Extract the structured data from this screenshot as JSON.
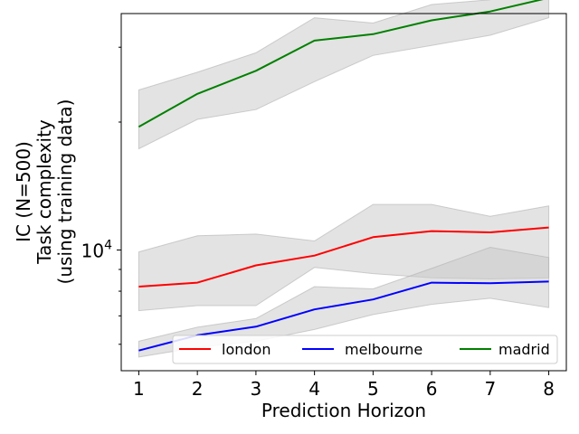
{
  "chart_data": {
    "type": "line",
    "xlabel": "Prediction Horizon",
    "ylabel_lines": [
      "IC (N=500)",
      "Task complexity",
      "(using training data)"
    ],
    "yscale": "log",
    "x": [
      1,
      2,
      3,
      4,
      5,
      6,
      7,
      8
    ],
    "xticks": [
      1,
      2,
      3,
      4,
      5,
      6,
      7,
      8
    ],
    "xlim": [
      0.7,
      8.3
    ],
    "ylim": [
      5200,
      36000
    ],
    "y_major_tick": {
      "value": 10000,
      "base": "10",
      "exp": "4"
    },
    "y_minor_ticks": [
      6000,
      7000,
      8000,
      9000,
      20000,
      30000
    ],
    "band_color": "#c8c8c8",
    "legend_position": "lower-center",
    "series": [
      {
        "name": "london",
        "color": "#ff0000",
        "values": [
          8200,
          8380,
          9200,
          9700,
          10720,
          11080,
          11000,
          11300
        ],
        "lower": [
          7200,
          7400,
          7400,
          9100,
          8800,
          8600,
          8550,
          8600
        ],
        "upper": [
          9900,
          10800,
          10900,
          10500,
          12800,
          12800,
          12000,
          12700
        ]
      },
      {
        "name": "melbourne",
        "color": "#0000ff",
        "values": [
          5800,
          6300,
          6600,
          7250,
          7650,
          8380,
          8350,
          8430
        ],
        "lower": [
          5600,
          5900,
          6100,
          6500,
          7050,
          7450,
          7700,
          7320
        ],
        "upper": [
          6100,
          6580,
          6900,
          8200,
          8100,
          9050,
          10150,
          9600
        ]
      },
      {
        "name": "madrid",
        "color": "#008000",
        "values": [
          19500,
          23300,
          26400,
          31100,
          32200,
          34700,
          36400,
          39200
        ],
        "lower": [
          17300,
          20300,
          21400,
          24900,
          28700,
          30300,
          32000,
          35200
        ],
        "upper": [
          23800,
          26200,
          29100,
          35200,
          34200,
          37800,
          38800,
          43100
        ]
      }
    ]
  }
}
